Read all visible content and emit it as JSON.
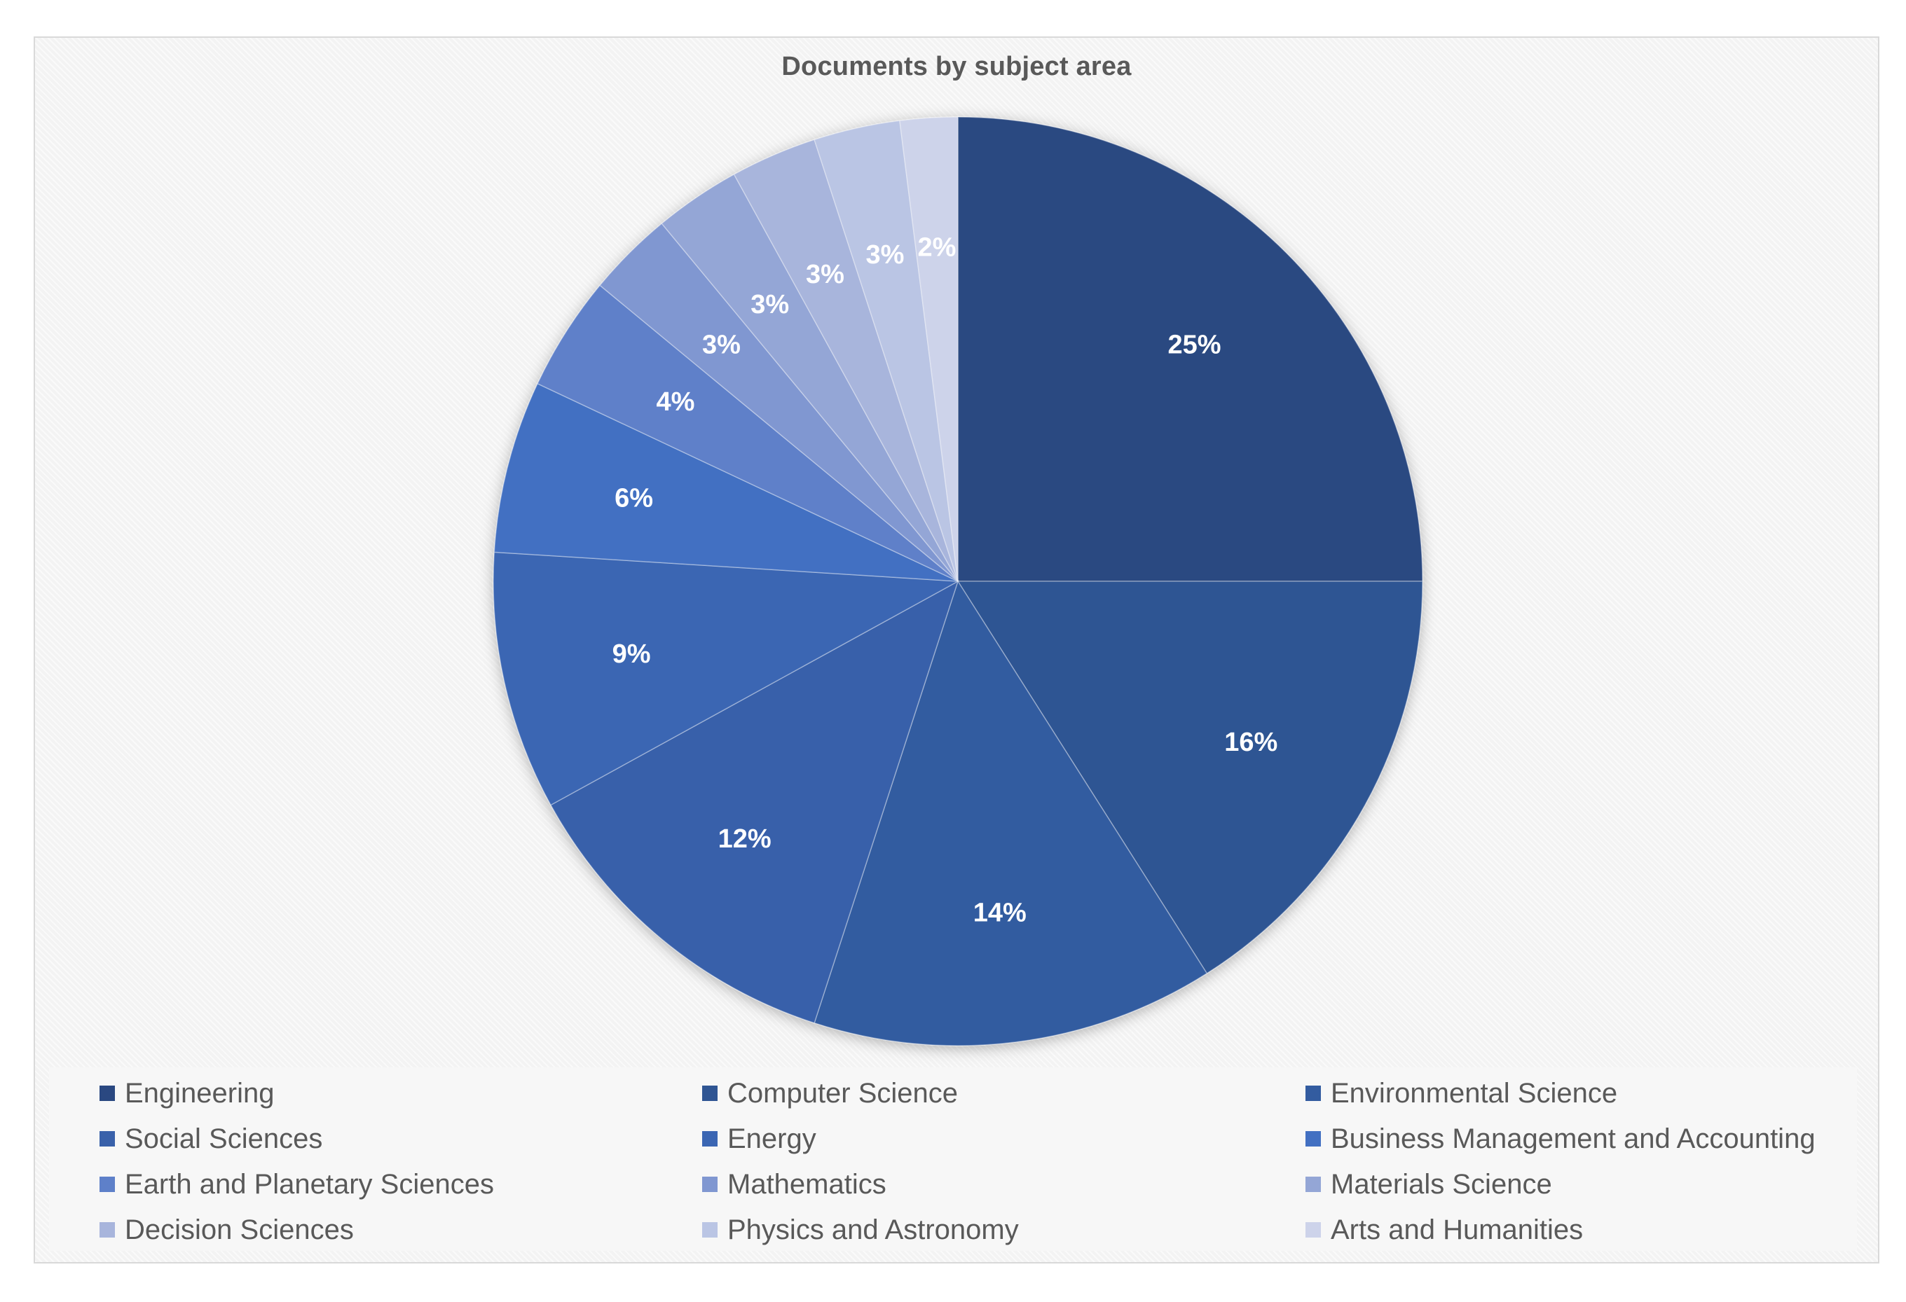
{
  "chart_data": {
    "type": "pie",
    "title": "Documents by subject area",
    "categories": [
      "Engineering",
      "Computer Science",
      "Environmental Science",
      "Social Sciences",
      "Energy",
      "Business Management and Accounting",
      "Earth and Planetary Sciences",
      "Mathematics",
      "Materials Science",
      "Decision Sciences",
      "Physics and Astronomy",
      "Arts and Humanities"
    ],
    "values": [
      25,
      16,
      14,
      12,
      9,
      6,
      4,
      3,
      3,
      3,
      3,
      2
    ],
    "labels": [
      "25%",
      "16%",
      "14%",
      "12%",
      "9%",
      "6%",
      "4%",
      "3%",
      "3%",
      "3%",
      "3%",
      "2%"
    ],
    "colors": [
      "#2A4881",
      "#2F5593",
      "#335CA0",
      "#3961AA",
      "#3B66B3",
      "#4270C2",
      "#5E80C9",
      "#8097D1",
      "#94A6D6",
      "#A8B5DC",
      "#BAC5E4",
      "#CDD3EA"
    ],
    "legend_position": "bottom",
    "start_angle": "12 o'clock",
    "direction": "clockwise"
  }
}
